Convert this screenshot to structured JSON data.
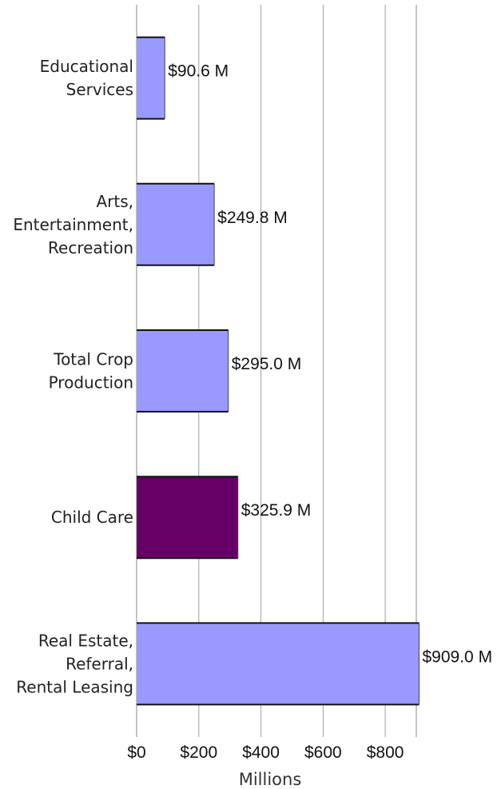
{
  "chart_data": {
    "type": "bar",
    "orientation": "horizontal",
    "categories": [
      [
        "Educational",
        "Services"
      ],
      [
        "Arts,",
        "Entertainment,",
        "Recreation"
      ],
      [
        "Total Crop",
        "Production"
      ],
      [
        "Child Care"
      ],
      [
        "Real Estate,",
        "Referral,",
        "Rental Leasing"
      ]
    ],
    "values": [
      90.6,
      249.8,
      295.0,
      325.9,
      909.0
    ],
    "value_labels": [
      "$90.6 M",
      "$249.8 M",
      "$295.0 M",
      "$325.9 M",
      "$909.0 M"
    ],
    "highlight_index": 3,
    "xlabel": "Millions",
    "xlim": [
      0,
      900
    ],
    "ticks": [
      0,
      200,
      400,
      600,
      800
    ],
    "tick_labels": [
      "$0",
      "$200",
      "$400",
      "$600",
      "$800"
    ],
    "grid": true,
    "colors": {
      "bar": "#9999ff",
      "highlight": "#660066",
      "grid": "#a0a0a0",
      "bar_edge": "#111111"
    }
  }
}
